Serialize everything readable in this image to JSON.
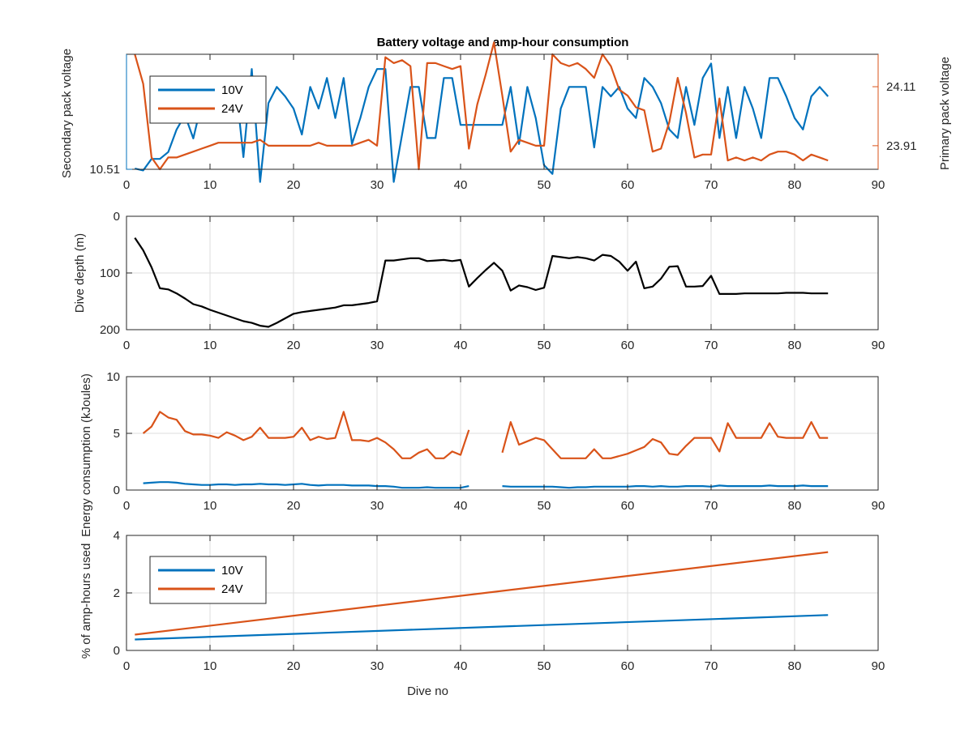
{
  "title": "Battery voltage and amp-hour consumption",
  "colors": {
    "blue": "#0072bd",
    "orange": "#d95319",
    "black": "#000000"
  },
  "chart_data": [
    {
      "type": "line",
      "title": "Battery voltage and amp-hour consumption",
      "xlabel": "",
      "ylabel_left": "Secondary pack voltage",
      "ylabel_right": "Primary pack voltage",
      "xlim": [
        0,
        90
      ],
      "xticks": [
        0,
        10,
        20,
        30,
        40,
        50,
        60,
        70,
        80,
        90
      ],
      "ylim_left": [
        10.51,
        10.56
      ],
      "yticks_left": [
        10.51
      ],
      "yticklabels_left": [
        "10.51"
      ],
      "ylim_right": [
        23.83,
        24.22
      ],
      "yticks_right": [
        23.91,
        24.11
      ],
      "yticklabels_right": [
        "23.91",
        "24.11"
      ],
      "grid": false,
      "legend": {
        "position": "top-left",
        "entries": [
          "10V",
          "24V"
        ]
      },
      "series": [
        {
          "name": "10V",
          "axis": "left",
          "color": "#0072bd",
          "x": [
            1,
            2,
            3,
            4,
            5,
            6,
            7,
            8,
            9,
            10,
            11,
            12,
            13,
            14,
            15,
            16,
            17,
            18,
            19,
            20,
            21,
            22,
            23,
            24,
            25,
            26,
            27,
            28,
            29,
            30,
            31,
            32,
            33,
            34,
            35,
            36,
            37,
            38,
            39,
            40,
            41,
            42,
            43,
            44,
            45,
            46,
            47,
            48,
            49,
            50,
            51,
            52,
            53,
            54,
            55,
            56,
            57,
            58,
            59,
            60,
            61,
            62,
            63,
            64,
            65,
            66,
            67,
            68,
            69,
            70,
            71,
            72,
            73,
            74,
            75,
            76,
            77,
            78,
            79,
            80,
            81,
            82,
            83,
            84
          ],
          "values": [
            10.5103,
            10.5095,
            10.5145,
            10.5145,
            10.5175,
            10.5273,
            10.5336,
            10.5234,
            10.5388,
            10.5378,
            10.5497,
            10.5388,
            10.5497,
            10.5153,
            10.5536,
            10.5045,
            10.5388,
            10.5458,
            10.5417,
            10.5364,
            10.5251,
            10.5458,
            10.5364,
            10.5497,
            10.5323,
            10.5497,
            10.521,
            10.5323,
            10.5458,
            10.5536,
            10.5536,
            10.5045,
            10.5251,
            10.5458,
            10.5458,
            10.5236,
            10.5236,
            10.5497,
            10.5497,
            10.5293,
            10.5293,
            10.5293,
            10.5293,
            10.5293,
            10.5293,
            10.5458,
            10.521,
            10.5458,
            10.5323,
            10.5118,
            10.508,
            10.5364,
            10.5458,
            10.5458,
            10.5458,
            10.5195,
            10.5458,
            10.5417,
            10.5458,
            10.5364,
            10.5323,
            10.5497,
            10.5458,
            10.5388,
            10.5273,
            10.5236,
            10.5458,
            10.5293,
            10.5497,
            10.556,
            10.5236,
            10.5458,
            10.5236,
            10.5458,
            10.5364,
            10.5236,
            10.5497,
            10.5497,
            10.5417,
            10.5323,
            10.5273,
            10.5417,
            10.5458,
            10.5417
          ]
        },
        {
          "name": "24V",
          "axis": "right",
          "color": "#d95319",
          "x": [
            1,
            2,
            3,
            4,
            5,
            6,
            7,
            8,
            9,
            10,
            11,
            12,
            13,
            14,
            15,
            16,
            17,
            18,
            19,
            20,
            21,
            22,
            23,
            24,
            25,
            26,
            27,
            28,
            29,
            30,
            31,
            32,
            33,
            34,
            35,
            36,
            37,
            38,
            39,
            40,
            41,
            42,
            43,
            44,
            45,
            46,
            47,
            48,
            49,
            50,
            51,
            52,
            53,
            54,
            55,
            56,
            57,
            58,
            59,
            60,
            61,
            62,
            63,
            64,
            65,
            66,
            67,
            68,
            69,
            70,
            71,
            72,
            73,
            74,
            75,
            76,
            77,
            78,
            79,
            80,
            81,
            82,
            83,
            84
          ],
          "values": [
            24.22,
            24.12,
            23.87,
            23.83,
            23.87,
            23.87,
            23.88,
            23.89,
            23.9,
            23.91,
            23.92,
            23.92,
            23.92,
            23.92,
            23.92,
            23.93,
            23.91,
            23.91,
            23.91,
            23.91,
            23.91,
            23.91,
            23.92,
            23.91,
            23.91,
            23.91,
            23.91,
            23.92,
            23.93,
            23.91,
            24.21,
            24.19,
            24.2,
            24.18,
            23.83,
            24.19,
            24.19,
            24.18,
            24.17,
            24.18,
            23.9,
            24.05,
            24.15,
            24.26,
            24.08,
            23.89,
            23.93,
            23.92,
            23.91,
            23.91,
            24.22,
            24.19,
            24.18,
            24.19,
            24.17,
            24.14,
            24.22,
            24.18,
            24.1,
            24.08,
            24.04,
            24.03,
            23.89,
            23.9,
            23.99,
            24.14,
            24.02,
            23.87,
            23.88,
            23.88,
            24.07,
            23.86,
            23.87,
            23.86,
            23.87,
            23.86,
            23.88,
            23.89,
            23.89,
            23.88,
            23.86,
            23.88,
            23.87,
            23.86
          ]
        }
      ]
    },
    {
      "type": "line",
      "xlabel": "",
      "ylabel": "Dive depth (m)",
      "xlim": [
        0,
        90
      ],
      "xticks": [
        0,
        10,
        20,
        30,
        40,
        50,
        60,
        70,
        80,
        90
      ],
      "ylim": [
        0,
        200
      ],
      "y_reversed": true,
      "yticks": [
        0,
        100,
        200
      ],
      "yticklabels": [
        "0",
        "100",
        "200"
      ],
      "grid": true,
      "series": [
        {
          "color": "#000000",
          "x": [
            1,
            2,
            3,
            4,
            5,
            6,
            7,
            8,
            9,
            10,
            11,
            12,
            13,
            14,
            15,
            16,
            17,
            18,
            19,
            20,
            21,
            22,
            23,
            24,
            25,
            26,
            27,
            28,
            29,
            30,
            31,
            32,
            33,
            34,
            35,
            36,
            37,
            38,
            39,
            40,
            41,
            42,
            43,
            44,
            45,
            46,
            47,
            48,
            49,
            50,
            51,
            52,
            53,
            54,
            55,
            56,
            57,
            58,
            59,
            60,
            61,
            62,
            63,
            64,
            65,
            66,
            67,
            68,
            69,
            70,
            71,
            72,
            73,
            74,
            75,
            76,
            77,
            78,
            79,
            80,
            81,
            82,
            83,
            84
          ],
          "values": [
            38,
            60,
            90,
            127,
            129,
            136,
            145,
            155,
            159,
            165,
            170,
            175,
            180,
            185,
            188,
            193,
            195,
            188,
            180,
            172,
            169,
            167,
            165,
            163,
            161,
            157,
            157,
            155,
            153,
            150,
            78,
            78,
            76,
            74,
            74,
            79,
            78,
            77,
            79,
            77,
            124,
            109,
            95,
            82,
            96,
            131,
            122,
            125,
            130,
            126,
            70,
            72,
            74,
            72,
            74,
            78,
            68,
            70,
            80,
            96,
            80,
            127,
            124,
            110,
            89,
            88,
            124,
            124,
            123,
            105,
            137,
            137,
            137,
            136,
            136,
            136,
            136,
            136,
            135,
            135,
            135,
            136,
            136,
            136
          ]
        }
      ]
    },
    {
      "type": "line",
      "xlabel": "",
      "ylabel": "Energy consumption (kJoules)",
      "xlim": [
        0,
        90
      ],
      "xticks": [
        0,
        10,
        20,
        30,
        40,
        50,
        60,
        70,
        80,
        90
      ],
      "ylim": [
        0,
        10
      ],
      "yticks": [
        0,
        5,
        10
      ],
      "grid": true,
      "series": [
        {
          "name": "10V",
          "color": "#0072bd",
          "x": [
            2,
            3,
            4,
            5,
            6,
            7,
            8,
            9,
            10,
            11,
            12,
            13,
            14,
            15,
            16,
            17,
            18,
            19,
            20,
            21,
            22,
            23,
            24,
            25,
            26,
            27,
            28,
            29,
            30,
            31,
            32,
            33,
            34,
            35,
            36,
            37,
            38,
            39,
            40,
            41,
            null,
            45,
            46,
            47,
            48,
            49,
            50,
            51,
            52,
            53,
            54,
            55,
            56,
            57,
            58,
            59,
            60,
            61,
            62,
            63,
            64,
            65,
            66,
            67,
            68,
            69,
            70,
            71,
            72,
            73,
            74,
            75,
            76,
            77,
            78,
            79,
            80,
            81,
            82,
            83,
            84
          ],
          "values": [
            0.6,
            0.65,
            0.7,
            0.7,
            0.65,
            0.55,
            0.5,
            0.45,
            0.45,
            0.5,
            0.5,
            0.45,
            0.5,
            0.5,
            0.55,
            0.5,
            0.5,
            0.45,
            0.5,
            0.55,
            0.45,
            0.4,
            0.45,
            0.45,
            0.45,
            0.4,
            0.4,
            0.4,
            0.35,
            0.35,
            0.3,
            0.2,
            0.2,
            0.2,
            0.25,
            0.2,
            0.2,
            0.2,
            0.2,
            0.35,
            null,
            0.35,
            0.3,
            0.3,
            0.3,
            0.3,
            0.3,
            0.3,
            0.25,
            0.2,
            0.25,
            0.25,
            0.3,
            0.3,
            0.3,
            0.3,
            0.3,
            0.35,
            0.35,
            0.3,
            0.35,
            0.3,
            0.3,
            0.35,
            0.35,
            0.35,
            0.3,
            0.4,
            0.35,
            0.35,
            0.35,
            0.35,
            0.35,
            0.4,
            0.35,
            0.35,
            0.35,
            0.4,
            0.35,
            0.35,
            0.35
          ]
        },
        {
          "name": "24V",
          "color": "#d95319",
          "x": [
            2,
            3,
            4,
            5,
            6,
            7,
            8,
            9,
            10,
            11,
            12,
            13,
            14,
            15,
            16,
            17,
            18,
            19,
            20,
            21,
            22,
            23,
            24,
            25,
            26,
            27,
            28,
            29,
            30,
            31,
            32,
            33,
            34,
            35,
            36,
            37,
            38,
            39,
            40,
            41,
            null,
            45,
            46,
            47,
            48,
            49,
            50,
            51,
            52,
            53,
            54,
            55,
            56,
            57,
            58,
            59,
            60,
            61,
            62,
            63,
            64,
            65,
            66,
            67,
            68,
            69,
            70,
            71,
            72,
            73,
            74,
            75,
            76,
            77,
            78,
            79,
            80,
            81,
            82,
            83,
            84
          ],
          "values": [
            5.0,
            5.6,
            6.9,
            6.4,
            6.2,
            5.2,
            4.9,
            4.9,
            4.8,
            4.6,
            5.1,
            4.8,
            4.4,
            4.7,
            5.5,
            4.6,
            4.6,
            4.6,
            4.7,
            5.5,
            4.4,
            4.7,
            4.5,
            4.6,
            6.9,
            4.4,
            4.4,
            4.3,
            4.6,
            4.2,
            3.6,
            2.8,
            2.8,
            3.3,
            3.6,
            2.8,
            2.8,
            3.4,
            3.1,
            5.3,
            null,
            3.3,
            6.0,
            4.0,
            4.3,
            4.6,
            4.4,
            3.6,
            2.8,
            2.8,
            2.8,
            2.8,
            3.6,
            2.8,
            2.8,
            3.0,
            3.2,
            3.5,
            3.8,
            4.5,
            4.2,
            3.2,
            3.1,
            3.9,
            4.6,
            4.6,
            4.6,
            3.4,
            5.9,
            4.6,
            4.6,
            4.6,
            4.6,
            5.9,
            4.7,
            4.6,
            4.6,
            4.6,
            6.0,
            4.6,
            4.6
          ]
        }
      ]
    },
    {
      "type": "line",
      "xlabel": "Dive no",
      "ylabel": "% of amp-hours used",
      "xlim": [
        0,
        90
      ],
      "xticks": [
        0,
        10,
        20,
        30,
        40,
        50,
        60,
        70,
        80,
        90
      ],
      "ylim": [
        0,
        4
      ],
      "yticks": [
        0,
        2,
        4
      ],
      "grid": true,
      "legend": {
        "position": "top-left",
        "entries": [
          "10V",
          "24V"
        ]
      },
      "series": [
        {
          "name": "10V",
          "color": "#0072bd",
          "x": [
            1,
            84
          ],
          "values": [
            0.38,
            1.23
          ]
        },
        {
          "name": "24V",
          "color": "#d95319",
          "x": [
            1,
            84
          ],
          "values": [
            0.55,
            3.42
          ]
        }
      ]
    }
  ]
}
